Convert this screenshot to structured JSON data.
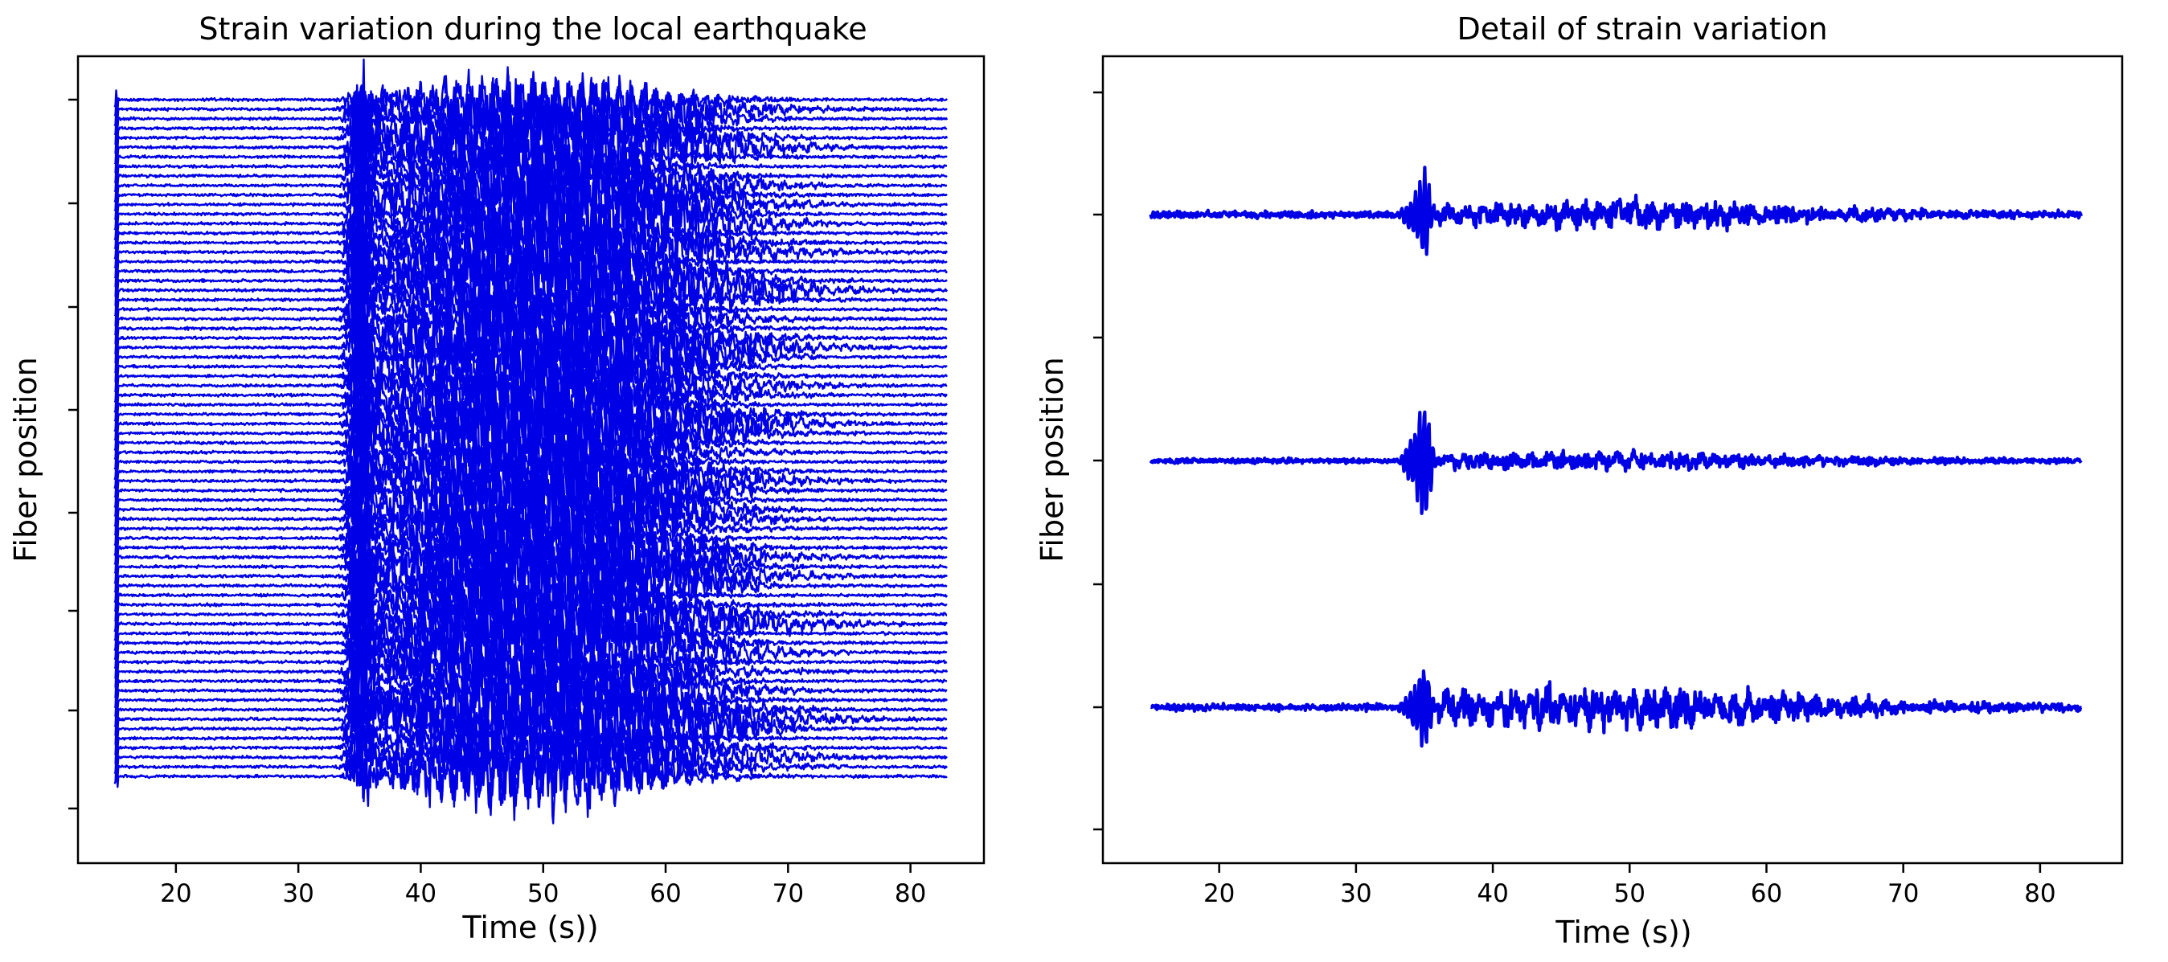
{
  "chart_data": [
    {
      "type": "line",
      "title": "Strain variation during the local earthquake",
      "xlabel": "Time (s))",
      "ylabel": "Fiber position",
      "x_ticks": [
        20,
        30,
        40,
        50,
        60,
        70,
        80
      ],
      "xlim": [
        12,
        86
      ],
      "x_range": [
        15,
        83
      ],
      "y_ticks_labeled": false,
      "n_traces": 72,
      "color": "#0000e6",
      "event_time_s": 35,
      "grid": false,
      "legend": "none"
    },
    {
      "type": "line",
      "title": "Detail of strain variation",
      "xlabel": "Time (s))",
      "ylabel": "Fiber position",
      "x_ticks": [
        20,
        30,
        40,
        50,
        60,
        70,
        80
      ],
      "xlim": [
        11.5,
        86
      ],
      "x_range": [
        15,
        83
      ],
      "y_ticks_labeled": false,
      "n_traces": 3,
      "color": "#0000e6",
      "event_time_s": 35,
      "grid": false,
      "legend": "none"
    }
  ]
}
